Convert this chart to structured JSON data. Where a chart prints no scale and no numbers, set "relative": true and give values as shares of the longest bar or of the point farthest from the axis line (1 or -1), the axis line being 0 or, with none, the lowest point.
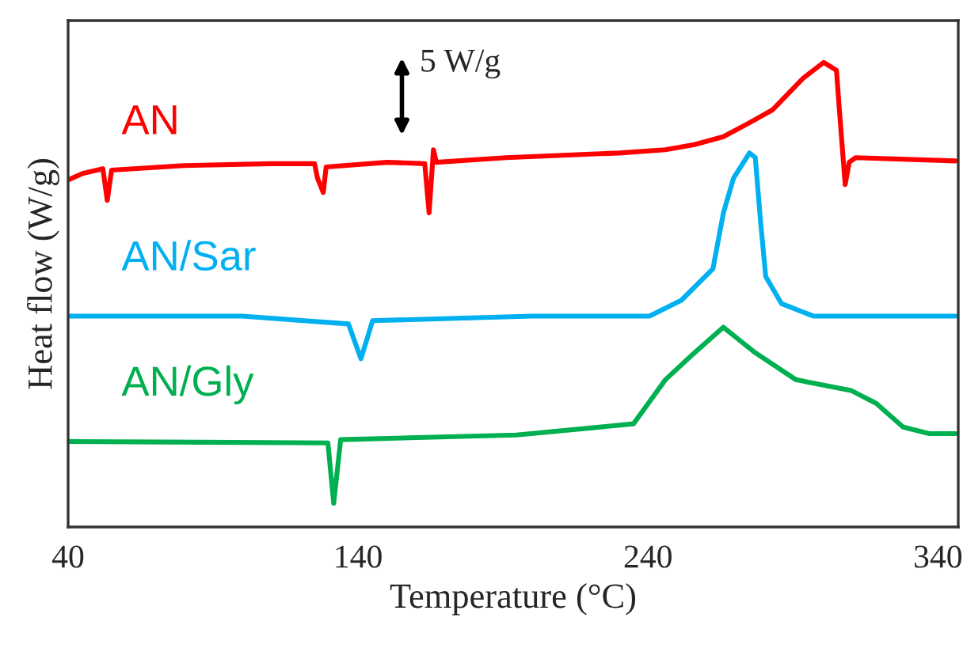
{
  "chart_data": {
    "type": "line",
    "relative": true,
    "xlabel": "Temperature (°C)",
    "ylabel": "Heat flow (W/g)",
    "xlim": [
      40,
      347
    ],
    "xticks": [
      40,
      140,
      240,
      340
    ],
    "grid": false,
    "legend": false,
    "marker": "none",
    "line_style": "solid",
    "annotations": [
      "5 W/g"
    ],
    "series": [
      {
        "name": "AN",
        "color": "#ff0000",
        "x": [
          40,
          45,
          52,
          53.5,
          55,
          80,
          110,
          125,
          126,
          128,
          129,
          150,
          163,
          164.5,
          166,
          167,
          191,
          230,
          246,
          256,
          266,
          275,
          283,
          293.5,
          300.6,
          305,
          306,
          308,
          309.4,
          311.6,
          346
        ],
        "values": [
          0.747,
          0.761,
          0.771,
          0.703,
          0.768,
          0.778,
          0.782,
          0.782,
          0.751,
          0.72,
          0.775,
          0.785,
          0.782,
          0.676,
          0.812,
          0.785,
          0.795,
          0.805,
          0.812,
          0.823,
          0.84,
          0.87,
          0.898,
          0.966,
          1.0,
          0.983,
          0.898,
          0.737,
          0.785,
          0.795,
          0.788
        ]
      },
      {
        "name": "AN/Sar",
        "color": "#00b0f0",
        "x": [
          40,
          100,
          136.7,
          141,
          145,
          200,
          240.5,
          251.5,
          262.4,
          266,
          269.5,
          275,
          277,
          278.8,
          280.6,
          286,
          297,
          346
        ],
        "values": [
          0.454,
          0.454,
          0.437,
          0.362,
          0.444,
          0.454,
          0.454,
          0.488,
          0.556,
          0.676,
          0.751,
          0.805,
          0.795,
          0.659,
          0.539,
          0.481,
          0.454,
          0.454
        ]
      },
      {
        "name": "AN/Gly",
        "color": "#00b050",
        "x": [
          40,
          129.6,
          131.6,
          134,
          194.6,
          235,
          246,
          255,
          266,
          277,
          291,
          310,
          318.7,
          328,
          337,
          346
        ],
        "values": [
          0.184,
          0.181,
          0.051,
          0.188,
          0.198,
          0.222,
          0.317,
          0.369,
          0.43,
          0.375,
          0.317,
          0.294,
          0.266,
          0.215,
          0.201,
          0.201
        ]
      }
    ]
  }
}
